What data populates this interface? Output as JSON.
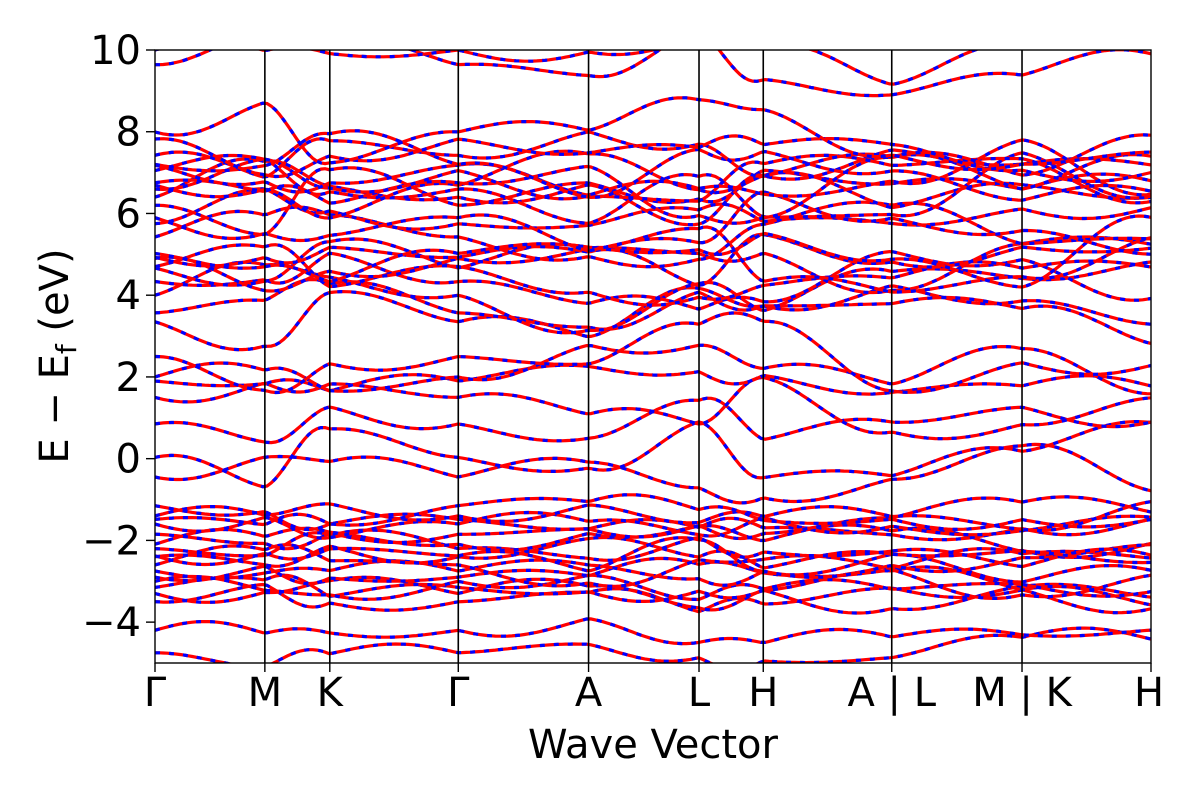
{
  "chart_data": {
    "type": "line",
    "xlabel": "Wave Vector",
    "ylabel": "E − E",
    "ylabel_sub": "f",
    "ylabel_unit": " (eV)",
    "ylim": [
      -5,
      10
    ],
    "yticks": [
      10,
      8,
      6,
      4,
      2,
      0,
      -2,
      -4
    ],
    "ytick_labels": [
      "10",
      "8",
      "6",
      "4",
      "2",
      "0",
      "−2",
      "−4"
    ],
    "kpath_labels": [
      "Γ",
      "M",
      "K",
      "Γ",
      "A",
      "L",
      "H",
      "A | L",
      "M | K",
      "H"
    ],
    "kpath_positions": [
      0,
      0.1103,
      0.1755,
      0.3045,
      0.4353,
      0.5462,
      0.6107,
      0.7397,
      0.8705,
      1.0
    ],
    "kpath_discontinuities": [
      0.7397,
      0.8705
    ],
    "grid": false,
    "series_styles": [
      {
        "color": "#ff0000",
        "style": "solid"
      },
      {
        "color": "#0000ff",
        "style": "dashed"
      }
    ],
    "band_energies_at_gamma": [
      10.0,
      7.2,
      7.05,
      6.75,
      6.4,
      6.2,
      5.75,
      4.9,
      4.7,
      4.0,
      3.35,
      2.5,
      2.0,
      1.9,
      1.5,
      0.85,
      -1.15,
      -1.4,
      -1.6,
      -2.2,
      -2.4,
      -2.6,
      -2.75,
      -2.9,
      -3.0,
      -3.15,
      -3.3,
      -3.5,
      -4.2,
      -4.75
    ],
    "band_count": 50
  }
}
